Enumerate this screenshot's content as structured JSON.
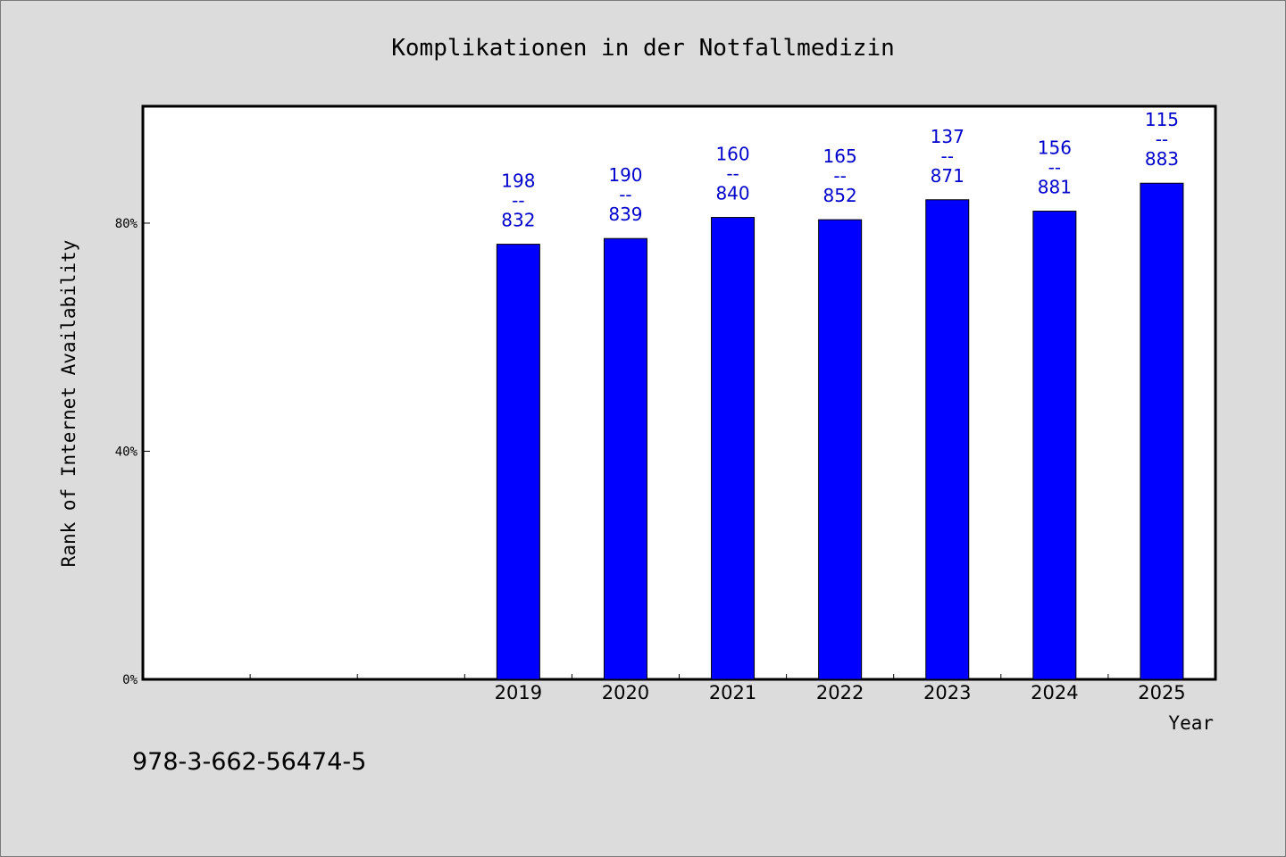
{
  "chart_data": {
    "type": "bar",
    "title": "Komplikationen in der Notfallmedizin",
    "xlabel": "Year",
    "ylabel": "Rank of Internet Availability",
    "categories": [
      "",
      "",
      "",
      "2019",
      "2020",
      "2021",
      "2022",
      "2023",
      "2024",
      "2025"
    ],
    "values": [
      null,
      null,
      null,
      76.3,
      77.3,
      81.0,
      80.6,
      84.1,
      82.1,
      87.0
    ],
    "data_labels": [
      null,
      null,
      null,
      {
        "top": "198",
        "sep": "--",
        "bottom": "832"
      },
      {
        "top": "190",
        "sep": "--",
        "bottom": "839"
      },
      {
        "top": "160",
        "sep": "--",
        "bottom": "840"
      },
      {
        "top": "165",
        "sep": "--",
        "bottom": "852"
      },
      {
        "top": "137",
        "sep": "--",
        "bottom": "871"
      },
      {
        "top": "156",
        "sep": "--",
        "bottom": "881"
      },
      {
        "top": "115",
        "sep": "--",
        "bottom": "883"
      }
    ],
    "yticks": [
      {
        "value": 0,
        "label": "0%"
      },
      {
        "value": 40,
        "label": "40%"
      },
      {
        "value": 80,
        "label": "80%"
      }
    ],
    "ylim": [
      0,
      100.5
    ],
    "grid": false,
    "legend": "none",
    "bar_color": "#0000ff",
    "label_color": "#0000cc",
    "plot_background": "#ffffff",
    "figure_background": "#dcdcdc"
  },
  "footer": {
    "isbn": "978-3-662-56474-5"
  }
}
